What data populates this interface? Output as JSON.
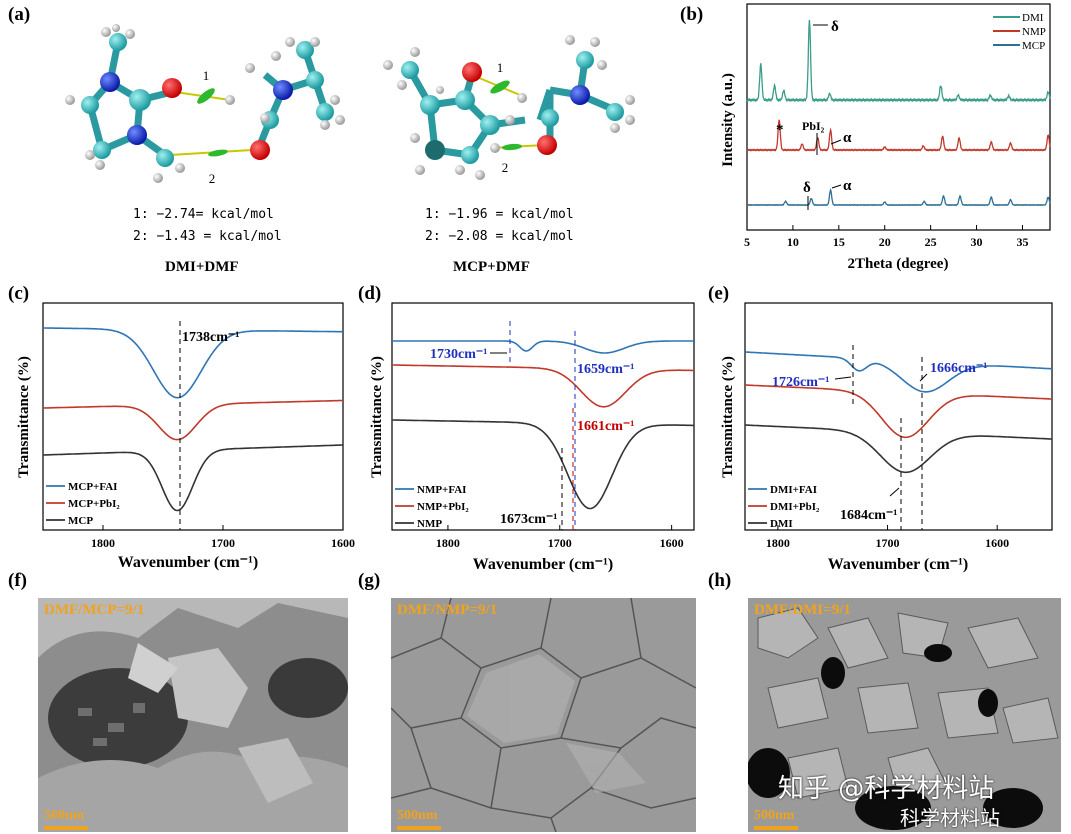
{
  "panel_labels": {
    "a": "(a)",
    "b": "(b)",
    "c": "(c)",
    "d": "(d)",
    "e": "(e)",
    "f": "(f)",
    "g": "(g)",
    "h": "(h)"
  },
  "panel_a": {
    "left": {
      "bond1": "1",
      "bond2": "2",
      "energy1": "1: −2.74= kcal/mol",
      "energy2": "2: −1.43 = kcal/mol",
      "caption": "DMI+DMF"
    },
    "right": {
      "bond1": "1",
      "bond2": "2",
      "energy1": "1: −1.96 = kcal/mol",
      "energy2": "2: −2.08 = kcal/mol",
      "caption": "MCP+DMF"
    }
  },
  "colors": {
    "teal": "#3a9c8a",
    "red": "#c0392b",
    "blue_ir": "#2e75b6",
    "blue_xrd": "#2f6f95",
    "black": "#333333",
    "annot_blue": "#1f2fbf",
    "annot_red": "#c00000",
    "sem_label": "#f0a31e"
  },
  "chart_data": [
    {
      "panel": "b",
      "type": "line",
      "xlabel": "2Theta (degree)",
      "ylabel": "Intensity (a.u.)",
      "xlim": [
        5,
        38
      ],
      "x_ticks": [
        "5",
        "10",
        "15",
        "20",
        "25",
        "30",
        "35"
      ],
      "legend_position": "top-right",
      "series": [
        {
          "name": "DMI",
          "peaks": [
            [
              6.5,
              0.45
            ],
            [
              8.0,
              0.18
            ],
            [
              9.0,
              0.12
            ],
            [
              11.8,
              1.0
            ],
            [
              14.0,
              0.08
            ],
            [
              26.1,
              0.18
            ],
            [
              28.0,
              0.06
            ],
            [
              31.5,
              0.06
            ],
            [
              33.5,
              0.05
            ],
            [
              37.8,
              0.1
            ]
          ]
        },
        {
          "name": "NMP",
          "peaks": [
            [
              8.5,
              0.6
            ],
            [
              11.0,
              0.12
            ],
            [
              12.7,
              0.25
            ],
            [
              14.1,
              0.4
            ],
            [
              20.0,
              0.06
            ],
            [
              24.2,
              0.08
            ],
            [
              26.3,
              0.28
            ],
            [
              28.1,
              0.24
            ],
            [
              31.6,
              0.16
            ],
            [
              33.7,
              0.14
            ],
            [
              37.8,
              0.3
            ]
          ]
        },
        {
          "name": "MCP",
          "peaks": [
            [
              9.2,
              0.12
            ],
            [
              12.0,
              0.22
            ],
            [
              14.1,
              0.5
            ],
            [
              20.0,
              0.1
            ],
            [
              24.3,
              0.12
            ],
            [
              26.4,
              0.3
            ],
            [
              28.2,
              0.3
            ],
            [
              31.6,
              0.26
            ],
            [
              33.7,
              0.18
            ],
            [
              37.8,
              0.26
            ]
          ]
        }
      ],
      "annotations": {
        "delta_top": "δ",
        "star": "*",
        "pbi2": "PbI₂",
        "alpha_mid": "α",
        "delta_bot": "δ",
        "alpha_bot": "α"
      }
    },
    {
      "panel": "c",
      "type": "line",
      "xlabel": "Wavenumber (cm⁻¹)",
      "ylabel": "Transmittance (%)",
      "xlim": [
        1850,
        1600
      ],
      "x_ticks": [
        "1800",
        "1700",
        "1600"
      ],
      "legend_position": "bottom-left",
      "series": [
        {
          "name": "MCP+FAI",
          "minimum": 1738
        },
        {
          "name": "MCP+PbI₂",
          "minimum": 1738
        },
        {
          "name": "MCP",
          "minimum": 1738
        }
      ],
      "annotations": {
        "peak": "1738cm⁻¹"
      }
    },
    {
      "panel": "d",
      "type": "line",
      "xlabel": "Wavenumber (cm⁻¹)",
      "ylabel": "Transmittance (%)",
      "xlim": [
        1850,
        1580
      ],
      "x_ticks": [
        "1800",
        "1700",
        "1600"
      ],
      "legend_position": "bottom-left",
      "series": [
        {
          "name": "NMP+FAI",
          "minima": [
            1730,
            1659
          ]
        },
        {
          "name": "NMP+PbI₂",
          "minimum": 1661
        },
        {
          "name": "NMP",
          "minimum": 1673
        }
      ],
      "annotations": {
        "a1": "1730cm⁻¹",
        "a2": "1659cm⁻¹",
        "a3": "1661cm⁻¹",
        "a4": "1673cm⁻¹"
      }
    },
    {
      "panel": "e",
      "type": "line",
      "xlabel": "Wavenumber (cm⁻¹)",
      "ylabel": "Transmittance (%)",
      "xlim": [
        1830,
        1550
      ],
      "x_ticks": [
        "1800",
        "1700",
        "1600"
      ],
      "legend_position": "bottom-left",
      "series": [
        {
          "name": "DMI+FAI",
          "minima": [
            1726,
            1666
          ]
        },
        {
          "name": "DMI+PbI₂",
          "minimum": 1684
        },
        {
          "name": "DMI",
          "minimum": 1684
        }
      ],
      "annotations": {
        "a1": "1726cm⁻¹",
        "a2": "1666cm⁻¹",
        "a3": "1684cm⁻¹"
      }
    }
  ],
  "sem": {
    "f": {
      "label": "DMF/MCP=9/1",
      "scale": "500nm"
    },
    "g": {
      "label": "DMF/NMP=9/1",
      "scale": "500nm"
    },
    "h": {
      "label": "DMF/DMI=9/1",
      "scale": "500nm"
    }
  },
  "watermark": {
    "line1": "知乎 @科学材料站",
    "line2": "科学材料站"
  }
}
